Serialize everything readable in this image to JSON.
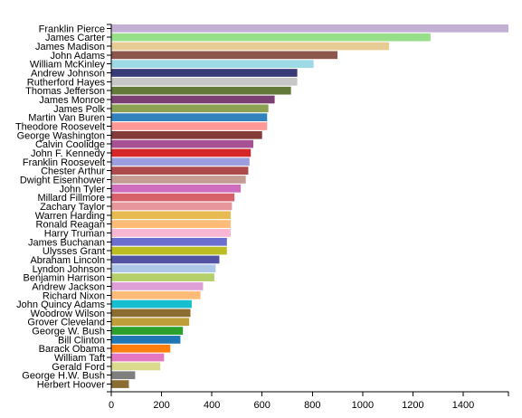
{
  "chart_data": {
    "type": "bar",
    "orientation": "horizontal",
    "title": "",
    "xlabel": "",
    "ylabel": "",
    "xlim": [
      0,
      1580
    ],
    "x_ticks": [
      0,
      200,
      400,
      600,
      800,
      1000,
      1200,
      1400
    ],
    "grid": false,
    "categories": [
      "Franklin Pierce",
      "James Carter",
      "James Madison",
      "John Adams",
      "William McKinley",
      "Andrew Johnson",
      "Rutherford Hayes",
      "Thomas Jefferson",
      "James Monroe",
      "James Polk",
      "Martin Van Buren",
      "Theodore Roosevelt",
      "George Washington",
      "Calvin Coolidge",
      "John F. Kennedy",
      "Franklin Roosevelt",
      "Chester Arthur",
      "Dwight Eisenhower",
      "John Tyler",
      "Millard Fillmore",
      "Zachary Taylor",
      "Warren Harding",
      "Ronald Reagan",
      "Harry Truman",
      "James Buchanan",
      "Ulysses Grant",
      "Abraham Lincoln",
      "Lyndon Johnson",
      "Benjamin Harrison",
      "Andrew Jackson",
      "Richard Nixon",
      "John Quincy Adams",
      "Woodrow Wilson",
      "Grover Cleveland",
      "George W. Bush",
      "Bill Clinton",
      "Barack Obama",
      "William Taft",
      "Gerald Ford",
      "George H.W. Bush",
      "Herbert Hoover"
    ],
    "values": [
      1580,
      1270,
      1105,
      900,
      805,
      740,
      740,
      715,
      650,
      625,
      620,
      620,
      600,
      565,
      555,
      550,
      545,
      535,
      515,
      490,
      480,
      475,
      475,
      475,
      460,
      460,
      430,
      415,
      410,
      365,
      355,
      320,
      315,
      310,
      285,
      275,
      235,
      210,
      195,
      95,
      70
    ],
    "colors": [
      "#c5b0d5",
      "#98df8a",
      "#e7cb94",
      "#8c564b",
      "#9edae5",
      "#393b79",
      "#c7c7c7",
      "#637939",
      "#7b4173",
      "#8ca252",
      "#3182bd",
      "#ff9896",
      "#843c39",
      "#a55194",
      "#d62728",
      "#9c9ede",
      "#ad494a",
      "#c49c94",
      "#ce6dbd",
      "#d6616b",
      "#e7969c",
      "#e7ba52",
      "#ffbb78",
      "#f7b6d2",
      "#6b6ecf",
      "#bcbd22",
      "#5254a3",
      "#aec7e8",
      "#b5cf6b",
      "#de9ed6",
      "#ffbb78",
      "#17becf",
      "#8c6d31",
      "#bd9e39",
      "#2ca02c",
      "#1f77b4",
      "#ff7f0e",
      "#e377c2",
      "#dbdb8d",
      "#7f7f7f",
      "#8c6d31"
    ]
  }
}
